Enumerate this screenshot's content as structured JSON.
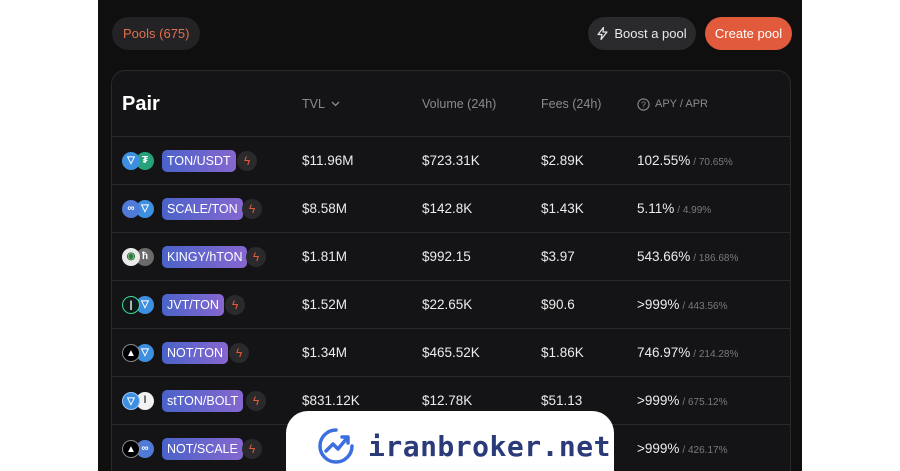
{
  "header": {
    "pools_label": "Pools (675)",
    "boost_label": "Boost a pool",
    "create_label": "Create pool"
  },
  "table": {
    "columns": {
      "pair": "Pair",
      "tvl": "TVL",
      "volume": "Volume (24h)",
      "fees": "Fees (24h)",
      "apy": "APY / APR"
    },
    "rows": [
      {
        "pair": "TON/USDT",
        "tvl": "$11.96M",
        "volume": "$723.31K",
        "fees": "$2.89K",
        "apy": "102.55%",
        "apr": "/ 70.65%"
      },
      {
        "pair": "SCALE/TON",
        "tvl": "$8.58M",
        "volume": "$142.8K",
        "fees": "$1.43K",
        "apy": "5.11%",
        "apr": "/ 4.99%"
      },
      {
        "pair": "KINGY/hTON",
        "tvl": "$1.81M",
        "volume": "$992.15",
        "fees": "$3.97",
        "apy": "543.66%",
        "apr": "/ 186.68%"
      },
      {
        "pair": "JVT/TON",
        "tvl": "$1.52M",
        "volume": "$22.65K",
        "fees": "$90.6",
        "apy": ">999%",
        "apr": "/ 443.56%"
      },
      {
        "pair": "NOT/TON",
        "tvl": "$1.34M",
        "volume": "$465.52K",
        "fees": "$1.86K",
        "apy": "746.97%",
        "apr": "/ 214.28%"
      },
      {
        "pair": "stTON/BOLT",
        "tvl": "$831.12K",
        "volume": "$12.78K",
        "fees": "$51.13",
        "apy": ">999%",
        "apr": "/ 675.12%"
      },
      {
        "pair": "NOT/SCALE",
        "tvl": "",
        "volume": "",
        "fees": "",
        "apy": ">999%",
        "apr": "/ 426.17%"
      }
    ]
  },
  "watermark": {
    "text": "iranbroker.net"
  },
  "colors": {
    "accent": "#e25a3c",
    "background": "#0f0f10",
    "pair_tag_start": "#4a63c9",
    "pair_tag_end": "#8667cf"
  }
}
